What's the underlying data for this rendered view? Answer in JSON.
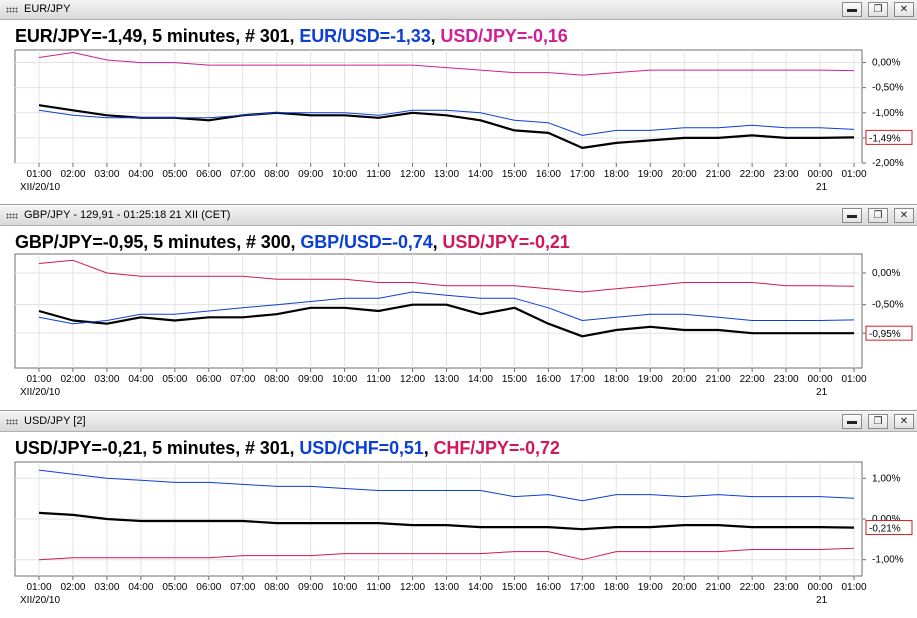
{
  "panels": [
    {
      "window_title": "EUR/JPY",
      "heading": {
        "main": "EUR/JPY=-1,49, 5 minutes, # 301",
        "sep1": ", ",
        "sec1": "EUR/USD=-1,33",
        "sep2": ", ",
        "sec2": "USD/JPY=-0,16"
      },
      "colors": {
        "main": "#000000",
        "sec1": "#0b3fd6",
        "sec2": "#d21e96"
      },
      "y_ticks": [
        "0,00%",
        "-0,50%",
        "-1,00%",
        "-1,50%",
        "-2,00%"
      ],
      "current_badge": "-1,49%",
      "x_ticks": [
        "01:00",
        "02:00",
        "03:00",
        "04:00",
        "05:00",
        "06:00",
        "07:00",
        "08:00",
        "09:00",
        "10:00",
        "11:00",
        "12:00",
        "13:00",
        "14:00",
        "15:00",
        "16:00",
        "17:00",
        "18:00",
        "19:00",
        "20:00",
        "21:00",
        "22:00",
        "23:00",
        "00:00",
        "01:00"
      ],
      "date_left": "XII/20/10",
      "date_right": "21"
    },
    {
      "window_title": "GBP/JPY - 129,91 - 01:25:18  21 XII (CET)",
      "heading": {
        "main": "GBP/JPY=-0,95, 5 minutes, # 300",
        "sep1": ", ",
        "sec1": "GBP/USD=-0,74",
        "sep2": ", ",
        "sec2": "USD/JPY=-0,21"
      },
      "colors": {
        "main": "#000000",
        "sec1": "#0b3fd6",
        "sec2": "#d2185a"
      },
      "y_ticks": [
        "0,00%",
        "-0,50%",
        "-0,95%"
      ],
      "current_badge": "-0,95%",
      "x_ticks": [
        "01:00",
        "02:00",
        "03:00",
        "04:00",
        "05:00",
        "06:00",
        "07:00",
        "08:00",
        "09:00",
        "10:00",
        "11:00",
        "12:00",
        "13:00",
        "14:00",
        "15:00",
        "16:00",
        "17:00",
        "18:00",
        "19:00",
        "20:00",
        "21:00",
        "22:00",
        "23:00",
        "00:00",
        "01:00"
      ],
      "date_left": "XII/20/10",
      "date_right": "21"
    },
    {
      "window_title": "USD/JPY [2]",
      "heading": {
        "main": "USD/JPY=-0,21, 5 minutes, # 301",
        "sep1": ", ",
        "sec1": "USD/CHF=0,51",
        "sep2": ", ",
        "sec2": "CHF/JPY=-0,72"
      },
      "colors": {
        "main": "#000000",
        "sec1": "#0b3fd6",
        "sec2": "#d2185a"
      },
      "y_ticks": [
        "1,00%",
        "0,00%",
        "-1,00%"
      ],
      "current_badge": "-0,21%",
      "x_ticks": [
        "01:00",
        "02:00",
        "03:00",
        "04:00",
        "05:00",
        "06:00",
        "07:00",
        "08:00",
        "09:00",
        "10:00",
        "11:00",
        "12:00",
        "13:00",
        "14:00",
        "15:00",
        "16:00",
        "17:00",
        "18:00",
        "19:00",
        "20:00",
        "21:00",
        "22:00",
        "23:00",
        "00:00",
        "01:00"
      ],
      "date_left": "XII/20/10",
      "date_right": "21"
    }
  ],
  "window_buttons": {
    "minimize": "▬",
    "restore": "❐",
    "close": "✕"
  },
  "chart_data": [
    {
      "type": "line",
      "x": [
        "01:00",
        "02:00",
        "03:00",
        "04:00",
        "05:00",
        "06:00",
        "07:00",
        "08:00",
        "09:00",
        "10:00",
        "11:00",
        "12:00",
        "13:00",
        "14:00",
        "15:00",
        "16:00",
        "17:00",
        "18:00",
        "19:00",
        "20:00",
        "21:00",
        "22:00",
        "23:00",
        "00:00",
        "01:00"
      ],
      "ylim": [
        -2.0,
        0.25
      ],
      "series": [
        {
          "name": "EUR/JPY",
          "color": "#000000",
          "values": [
            -0.85,
            -0.95,
            -1.05,
            -1.1,
            -1.1,
            -1.15,
            -1.05,
            -1.0,
            -1.05,
            -1.05,
            -1.1,
            -1.0,
            -1.05,
            -1.15,
            -1.35,
            -1.4,
            -1.7,
            -1.6,
            -1.55,
            -1.5,
            -1.5,
            -1.45,
            -1.5,
            -1.5,
            -1.49
          ]
        },
        {
          "name": "EUR/USD",
          "color": "#0b3fd6",
          "values": [
            -0.95,
            -1.05,
            -1.1,
            -1.1,
            -1.1,
            -1.1,
            -1.05,
            -1.0,
            -1.0,
            -1.0,
            -1.05,
            -0.95,
            -0.95,
            -1.0,
            -1.15,
            -1.2,
            -1.45,
            -1.35,
            -1.35,
            -1.3,
            -1.3,
            -1.25,
            -1.3,
            -1.3,
            -1.33
          ]
        },
        {
          "name": "USD/JPY",
          "color": "#d21e96",
          "values": [
            0.1,
            0.2,
            0.05,
            0.0,
            0.0,
            -0.05,
            -0.05,
            -0.05,
            -0.05,
            -0.05,
            -0.05,
            -0.05,
            -0.1,
            -0.15,
            -0.2,
            -0.2,
            -0.25,
            -0.2,
            -0.15,
            -0.15,
            -0.15,
            -0.15,
            -0.15,
            -0.15,
            -0.16
          ]
        }
      ]
    },
    {
      "type": "line",
      "x": [
        "01:00",
        "02:00",
        "03:00",
        "04:00",
        "05:00",
        "06:00",
        "07:00",
        "08:00",
        "09:00",
        "10:00",
        "11:00",
        "12:00",
        "13:00",
        "14:00",
        "15:00",
        "16:00",
        "17:00",
        "18:00",
        "19:00",
        "20:00",
        "21:00",
        "22:00",
        "23:00",
        "00:00",
        "01:00"
      ],
      "ylim": [
        -1.5,
        0.3
      ],
      "series": [
        {
          "name": "GBP/JPY",
          "color": "#000000",
          "values": [
            -0.6,
            -0.75,
            -0.8,
            -0.7,
            -0.75,
            -0.7,
            -0.7,
            -0.65,
            -0.55,
            -0.55,
            -0.6,
            -0.5,
            -0.5,
            -0.65,
            -0.55,
            -0.8,
            -1.0,
            -0.9,
            -0.85,
            -0.9,
            -0.9,
            -0.95,
            -0.95,
            -0.95,
            -0.95
          ]
        },
        {
          "name": "GBP/USD",
          "color": "#0b3fd6",
          "values": [
            -0.7,
            -0.8,
            -0.75,
            -0.65,
            -0.65,
            -0.6,
            -0.55,
            -0.5,
            -0.45,
            -0.4,
            -0.4,
            -0.3,
            -0.35,
            -0.4,
            -0.4,
            -0.55,
            -0.75,
            -0.7,
            -0.65,
            -0.65,
            -0.7,
            -0.75,
            -0.75,
            -0.75,
            -0.74
          ]
        },
        {
          "name": "USD/JPY",
          "color": "#d2185a",
          "values": [
            0.15,
            0.2,
            0.0,
            -0.05,
            -0.05,
            -0.05,
            -0.05,
            -0.1,
            -0.1,
            -0.1,
            -0.15,
            -0.15,
            -0.2,
            -0.2,
            -0.2,
            -0.25,
            -0.3,
            -0.25,
            -0.2,
            -0.15,
            -0.15,
            -0.15,
            -0.2,
            -0.2,
            -0.21
          ]
        }
      ]
    },
    {
      "type": "line",
      "x": [
        "01:00",
        "02:00",
        "03:00",
        "04:00",
        "05:00",
        "06:00",
        "07:00",
        "08:00",
        "09:00",
        "10:00",
        "11:00",
        "12:00",
        "13:00",
        "14:00",
        "15:00",
        "16:00",
        "17:00",
        "18:00",
        "19:00",
        "20:00",
        "21:00",
        "22:00",
        "23:00",
        "00:00",
        "01:00"
      ],
      "ylim": [
        -1.4,
        1.4
      ],
      "series": [
        {
          "name": "USD/JPY",
          "color": "#000000",
          "values": [
            0.15,
            0.1,
            0.0,
            -0.05,
            -0.05,
            -0.05,
            -0.05,
            -0.1,
            -0.1,
            -0.1,
            -0.1,
            -0.15,
            -0.15,
            -0.2,
            -0.2,
            -0.2,
            -0.25,
            -0.2,
            -0.2,
            -0.15,
            -0.15,
            -0.2,
            -0.2,
            -0.2,
            -0.21
          ]
        },
        {
          "name": "USD/CHF",
          "color": "#0b3fd6",
          "values": [
            1.2,
            1.1,
            1.0,
            0.95,
            0.9,
            0.9,
            0.85,
            0.8,
            0.8,
            0.75,
            0.7,
            0.7,
            0.7,
            0.7,
            0.55,
            0.6,
            0.45,
            0.6,
            0.6,
            0.55,
            0.6,
            0.55,
            0.55,
            0.55,
            0.51
          ]
        },
        {
          "name": "CHF/JPY",
          "color": "#d2185a",
          "values": [
            -1.0,
            -0.95,
            -0.95,
            -0.95,
            -0.95,
            -0.95,
            -0.9,
            -0.9,
            -0.9,
            -0.85,
            -0.85,
            -0.85,
            -0.85,
            -0.85,
            -0.8,
            -0.8,
            -1.0,
            -0.8,
            -0.8,
            -0.8,
            -0.8,
            -0.75,
            -0.75,
            -0.75,
            -0.72
          ]
        }
      ]
    }
  ]
}
